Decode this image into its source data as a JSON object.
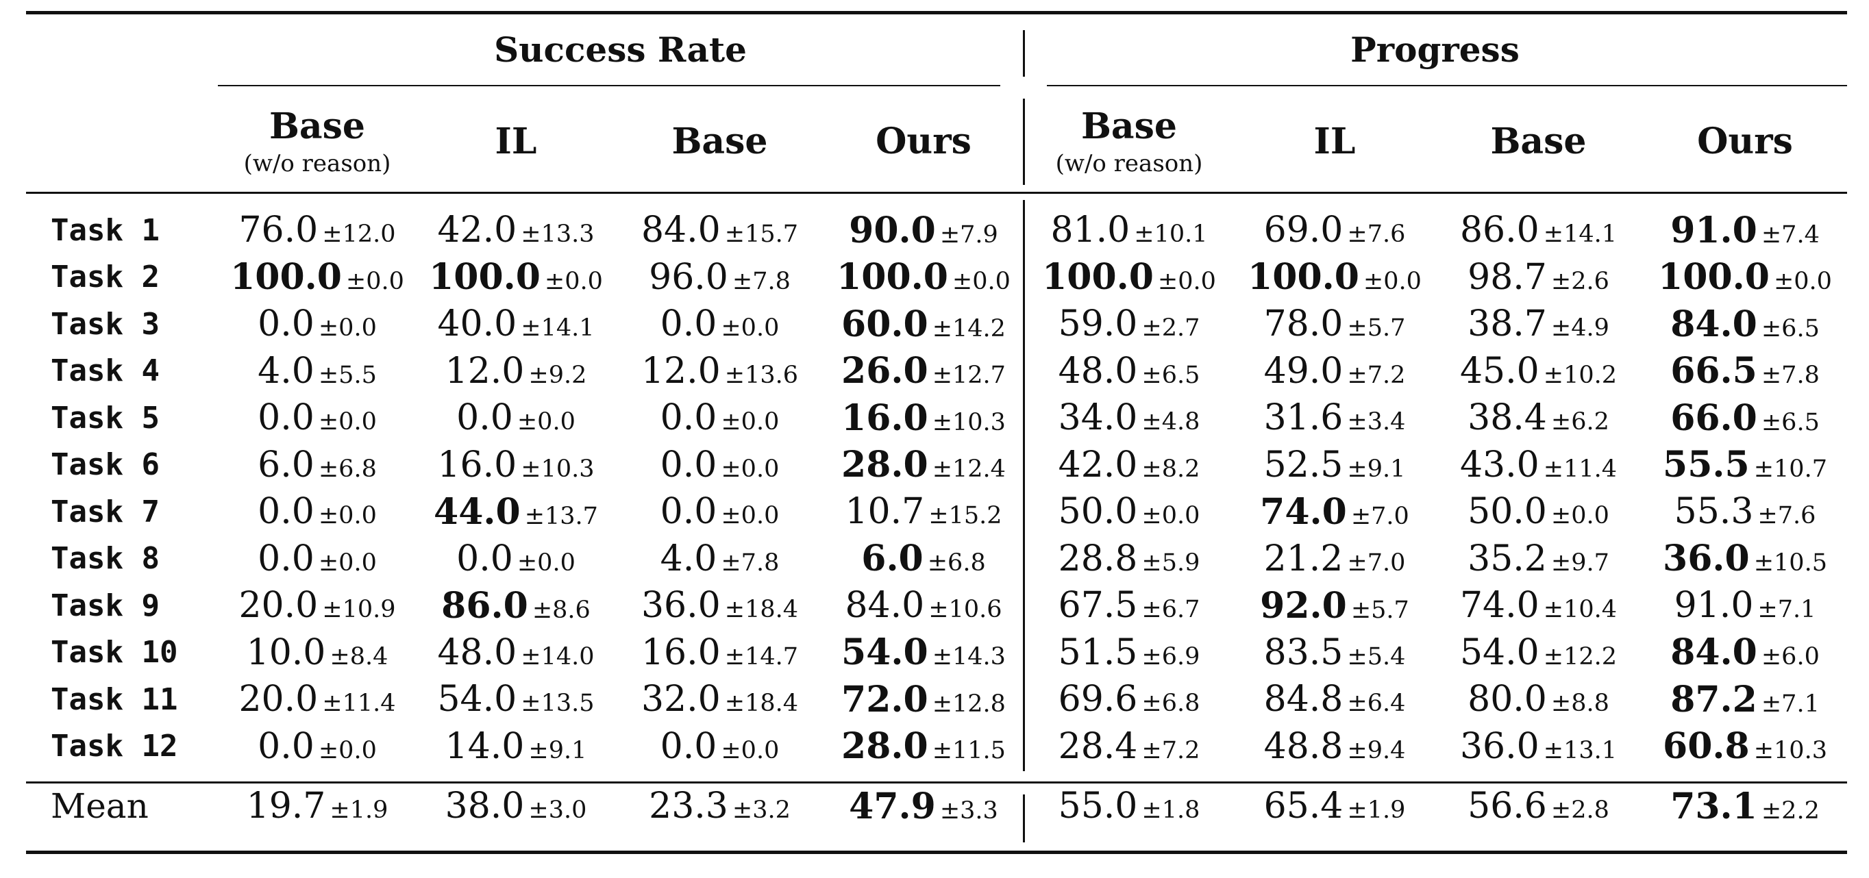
{
  "groups": {
    "success_rate": "Success Rate",
    "progress": "Progress"
  },
  "methods": [
    {
      "name": "Base",
      "sub": "(w/o reason)"
    },
    {
      "name": "IL",
      "sub": ""
    },
    {
      "name": "Base",
      "sub": ""
    },
    {
      "name": "Ours",
      "sub": ""
    }
  ],
  "rows": [
    {
      "label": "Task 1",
      "cells": [
        [
          "76.0",
          "±12.0",
          false
        ],
        [
          "42.0",
          "±13.3",
          false
        ],
        [
          "84.0",
          "±15.7",
          false
        ],
        [
          "90.0",
          "±7.9",
          true
        ],
        [
          "81.0",
          "±10.1",
          false
        ],
        [
          "69.0",
          "±7.6",
          false
        ],
        [
          "86.0",
          "±14.1",
          false
        ],
        [
          "91.0",
          "±7.4",
          true
        ]
      ]
    },
    {
      "label": "Task 2",
      "cells": [
        [
          "100.0",
          "±0.0",
          true
        ],
        [
          "100.0",
          "±0.0",
          true
        ],
        [
          "96.0",
          "±7.8",
          false
        ],
        [
          "100.0",
          "±0.0",
          true
        ],
        [
          "100.0",
          "±0.0",
          true
        ],
        [
          "100.0",
          "±0.0",
          true
        ],
        [
          "98.7",
          "±2.6",
          false
        ],
        [
          "100.0",
          "±0.0",
          true
        ]
      ]
    },
    {
      "label": "Task 3",
      "cells": [
        [
          "0.0",
          "±0.0",
          false
        ],
        [
          "40.0",
          "±14.1",
          false
        ],
        [
          "0.0",
          "±0.0",
          false
        ],
        [
          "60.0",
          "±14.2",
          true
        ],
        [
          "59.0",
          "±2.7",
          false
        ],
        [
          "78.0",
          "±5.7",
          false
        ],
        [
          "38.7",
          "±4.9",
          false
        ],
        [
          "84.0",
          "±6.5",
          true
        ]
      ]
    },
    {
      "label": "Task 4",
      "cells": [
        [
          "4.0",
          "±5.5",
          false
        ],
        [
          "12.0",
          "±9.2",
          false
        ],
        [
          "12.0",
          "±13.6",
          false
        ],
        [
          "26.0",
          "±12.7",
          true
        ],
        [
          "48.0",
          "±6.5",
          false
        ],
        [
          "49.0",
          "±7.2",
          false
        ],
        [
          "45.0",
          "±10.2",
          false
        ],
        [
          "66.5",
          "±7.8",
          true
        ]
      ]
    },
    {
      "label": "Task 5",
      "cells": [
        [
          "0.0",
          "±0.0",
          false
        ],
        [
          "0.0",
          "±0.0",
          false
        ],
        [
          "0.0",
          "±0.0",
          false
        ],
        [
          "16.0",
          "±10.3",
          true
        ],
        [
          "34.0",
          "±4.8",
          false
        ],
        [
          "31.6",
          "±3.4",
          false
        ],
        [
          "38.4",
          "±6.2",
          false
        ],
        [
          "66.0",
          "±6.5",
          true
        ]
      ]
    },
    {
      "label": "Task 6",
      "cells": [
        [
          "6.0",
          "±6.8",
          false
        ],
        [
          "16.0",
          "±10.3",
          false
        ],
        [
          "0.0",
          "±0.0",
          false
        ],
        [
          "28.0",
          "±12.4",
          true
        ],
        [
          "42.0",
          "±8.2",
          false
        ],
        [
          "52.5",
          "±9.1",
          false
        ],
        [
          "43.0",
          "±11.4",
          false
        ],
        [
          "55.5",
          "±10.7",
          true
        ]
      ]
    },
    {
      "label": "Task 7",
      "cells": [
        [
          "0.0",
          "±0.0",
          false
        ],
        [
          "44.0",
          "±13.7",
          true
        ],
        [
          "0.0",
          "±0.0",
          false
        ],
        [
          "10.7",
          "±15.2",
          false
        ],
        [
          "50.0",
          "±0.0",
          false
        ],
        [
          "74.0",
          "±7.0",
          true
        ],
        [
          "50.0",
          "±0.0",
          false
        ],
        [
          "55.3",
          "±7.6",
          false
        ]
      ]
    },
    {
      "label": "Task 8",
      "cells": [
        [
          "0.0",
          "±0.0",
          false
        ],
        [
          "0.0",
          "±0.0",
          false
        ],
        [
          "4.0",
          "±7.8",
          false
        ],
        [
          "6.0",
          "±6.8",
          true
        ],
        [
          "28.8",
          "±5.9",
          false
        ],
        [
          "21.2",
          "±7.0",
          false
        ],
        [
          "35.2",
          "±9.7",
          false
        ],
        [
          "36.0",
          "±10.5",
          true
        ]
      ]
    },
    {
      "label": "Task 9",
      "cells": [
        [
          "20.0",
          "±10.9",
          false
        ],
        [
          "86.0",
          "±8.6",
          true
        ],
        [
          "36.0",
          "±18.4",
          false
        ],
        [
          "84.0",
          "±10.6",
          false
        ],
        [
          "67.5",
          "±6.7",
          false
        ],
        [
          "92.0",
          "±5.7",
          true
        ],
        [
          "74.0",
          "±10.4",
          false
        ],
        [
          "91.0",
          "±7.1",
          false
        ]
      ]
    },
    {
      "label": "Task 10",
      "cells": [
        [
          "10.0",
          "±8.4",
          false
        ],
        [
          "48.0",
          "±14.0",
          false
        ],
        [
          "16.0",
          "±14.7",
          false
        ],
        [
          "54.0",
          "±14.3",
          true
        ],
        [
          "51.5",
          "±6.9",
          false
        ],
        [
          "83.5",
          "±5.4",
          false
        ],
        [
          "54.0",
          "±12.2",
          false
        ],
        [
          "84.0",
          "±6.0",
          true
        ]
      ]
    },
    {
      "label": "Task 11",
      "cells": [
        [
          "20.0",
          "±11.4",
          false
        ],
        [
          "54.0",
          "±13.5",
          false
        ],
        [
          "32.0",
          "±18.4",
          false
        ],
        [
          "72.0",
          "±12.8",
          true
        ],
        [
          "69.6",
          "±6.8",
          false
        ],
        [
          "84.8",
          "±6.4",
          false
        ],
        [
          "80.0",
          "±8.8",
          false
        ],
        [
          "87.2",
          "±7.1",
          true
        ]
      ]
    },
    {
      "label": "Task 12",
      "cells": [
        [
          "0.0",
          "±0.0",
          false
        ],
        [
          "14.0",
          "±9.1",
          false
        ],
        [
          "0.0",
          "±0.0",
          false
        ],
        [
          "28.0",
          "±11.5",
          true
        ],
        [
          "28.4",
          "±7.2",
          false
        ],
        [
          "48.8",
          "±9.4",
          false
        ],
        [
          "36.0",
          "±13.1",
          false
        ],
        [
          "60.8",
          "±10.3",
          true
        ]
      ]
    }
  ],
  "mean": {
    "label": "Mean",
    "cells": [
      [
        "19.7",
        "±1.9",
        false
      ],
      [
        "38.0",
        "±3.0",
        false
      ],
      [
        "23.3",
        "±3.2",
        false
      ],
      [
        "47.9",
        "±3.3",
        true
      ],
      [
        "55.0",
        "±1.8",
        false
      ],
      [
        "65.4",
        "±1.9",
        false
      ],
      [
        "56.6",
        "±2.8",
        false
      ],
      [
        "73.1",
        "±2.2",
        true
      ]
    ]
  }
}
